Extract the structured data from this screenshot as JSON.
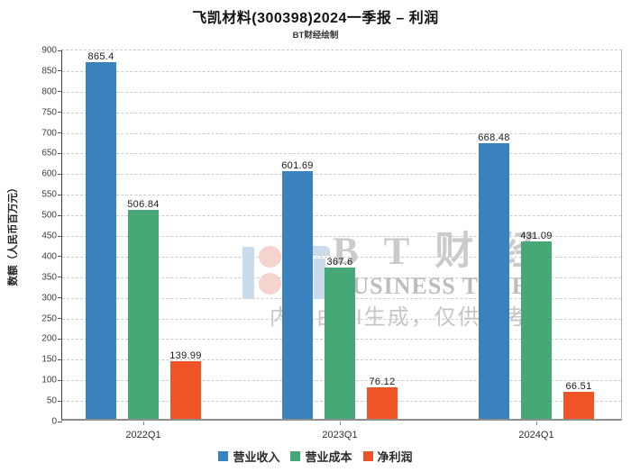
{
  "title": "飞凯材料(300398)2024一季报 – 利润",
  "subtitle": "BT财经绘制",
  "y_axis_label": "数额（人民币百万元）",
  "watermark": {
    "brand_cn": "B T 财 经",
    "brand_en": "BUSINESS TIMES",
    "disclaimer": "内容由AI生成，仅供参考",
    "logo_blue": "#cadcec",
    "logo_pink": "#f5d3cf"
  },
  "chart_data": {
    "type": "bar",
    "title": "飞凯材料(300398)2024一季报 – 利润",
    "subtitle": "BT财经绘制",
    "categories": [
      "2022Q1",
      "2023Q1",
      "2024Q1"
    ],
    "series": [
      {
        "name": "营业收入",
        "color": "#3a82bd",
        "values": [
          865.4,
          601.69,
          668.48
        ]
      },
      {
        "name": "营业成本",
        "color": "#46a877",
        "values": [
          506.84,
          367.6,
          431.09
        ]
      },
      {
        "name": "净利润",
        "color": "#ef5426",
        "values": [
          139.99,
          76.12,
          66.51
        ]
      }
    ],
    "xlabel": "",
    "ylabel": "数额（人民币百万元）",
    "ylim": [
      0,
      900
    ],
    "ytick_step": 50,
    "grid": true,
    "grid_style": "dashed",
    "legend_position": "bottom"
  }
}
